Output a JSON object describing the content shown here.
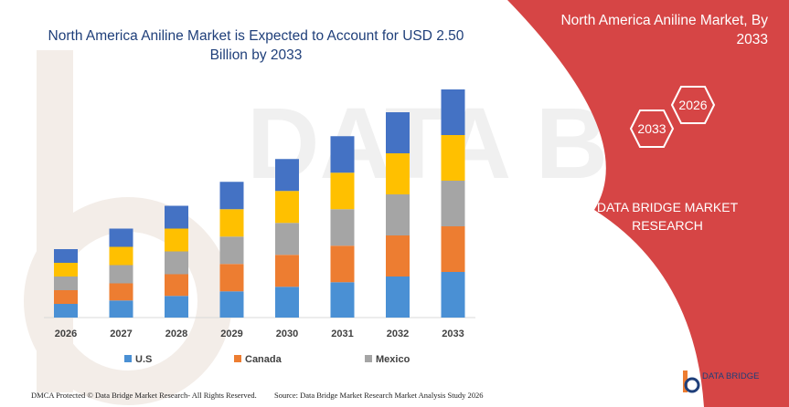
{
  "chart_data": {
    "type": "stacked-bar",
    "title": "North America Aniline Market is Expected to Account for USD 2.50 Billion by 2033",
    "categories": [
      "2026",
      "2027",
      "2028",
      "2029",
      "2030",
      "2031",
      "2032",
      "2033"
    ],
    "series": [
      {
        "name": "U.S",
        "color": "#4a90d4",
        "values": [
          12,
          15,
          19,
          23,
          27,
          31,
          36,
          40
        ]
      },
      {
        "name": "Canada",
        "color": "#ed7d31",
        "values": [
          12,
          15,
          19,
          24,
          28,
          32,
          36,
          40
        ]
      },
      {
        "name": "Mexico",
        "color": "#a5a5a5",
        "values": [
          12,
          16,
          20,
          24,
          28,
          32,
          36,
          40
        ]
      },
      {
        "name": "",
        "color": "#ffc000",
        "values": [
          12,
          16,
          20,
          24,
          28,
          32,
          36,
          40
        ]
      },
      {
        "name": "",
        "color": "#4472c4",
        "values": [
          12,
          16,
          20,
          24,
          28,
          32,
          36,
          40
        ]
      }
    ],
    "legend": [
      "U.S",
      "Canada",
      "Mexico"
    ],
    "ylim": [
      0,
      200
    ],
    "grid": false,
    "legend_position": "bottom"
  },
  "side": {
    "title": "North America Aniline Market, By 2033",
    "hexagons": [
      "2026",
      "2033"
    ],
    "org": "DATA BRIDGE MARKET RESEARCH",
    "panel_color": "#d64545"
  },
  "footer": {
    "left": "DMCA Protected © Data Bridge Market Research- All Rights Reserved.",
    "right": "Source: Data Bridge Market Research  Market Analysis Study 2026"
  },
  "logo": {
    "text": "DATA BRIDGE"
  },
  "watermark": {
    "text": "DATA BRIDGE"
  }
}
